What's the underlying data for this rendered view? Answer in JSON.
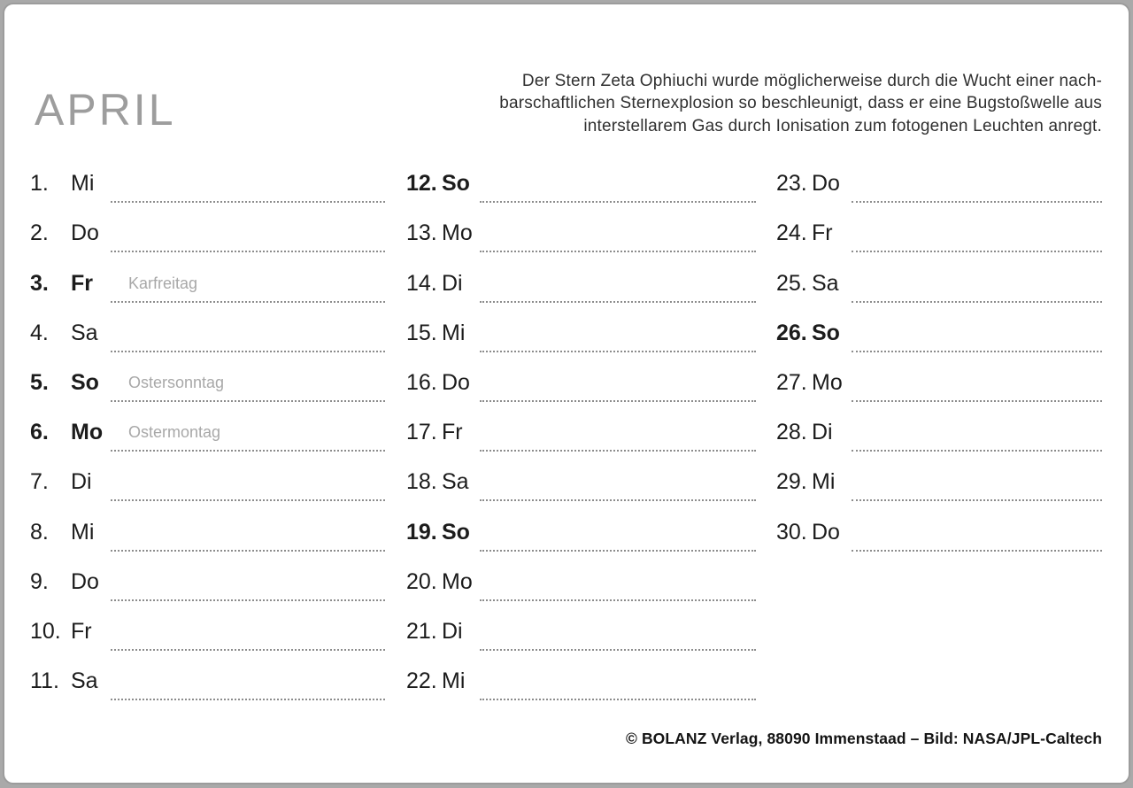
{
  "title": "APRIL",
  "intro": {
    "lines": [
      "Der Stern Zeta Ophiuchi wurde möglicherweise durch die Wucht einer nach-",
      "barschaftlichen Sternexplosion so beschleunigt, dass er eine Bugstoßwelle aus",
      "interstellarem Gas durch Ionisation zum fotogenen Leuchten anregt."
    ]
  },
  "footer": {
    "imprint": "© BOLANZ Verlag, 88090 Immenstaad – Bild: NASA/JPL-Caltech"
  },
  "colors": {
    "page_background": "#ffffff",
    "outer_background": "#a9a9a9",
    "page_border": "#9c9c9c",
    "title_gray": "#9d9d9d",
    "holiday_gray": "#a8a8a8",
    "dotted_line": "#8c8c8c",
    "day_text": "#1c1c1c"
  },
  "columns": [
    {
      "days": [
        {
          "date": "1.",
          "weekday": "Mi",
          "holiday": "",
          "bold": false
        },
        {
          "date": "2.",
          "weekday": "Do",
          "holiday": "",
          "bold": false
        },
        {
          "date": "3.",
          "weekday": "Fr",
          "holiday": "Karfreitag",
          "bold": true
        },
        {
          "date": "4.",
          "weekday": "Sa",
          "holiday": "",
          "bold": false
        },
        {
          "date": "5.",
          "weekday": "So",
          "holiday": "Ostersonntag",
          "bold": true
        },
        {
          "date": "6.",
          "weekday": "Mo",
          "holiday": "Ostermontag",
          "bold": true
        },
        {
          "date": "7.",
          "weekday": "Di",
          "holiday": "",
          "bold": false
        },
        {
          "date": "8.",
          "weekday": "Mi",
          "holiday": "",
          "bold": false
        },
        {
          "date": "9.",
          "weekday": "Do",
          "holiday": "",
          "bold": false
        },
        {
          "date": "10.",
          "weekday": "Fr",
          "holiday": "",
          "bold": false
        },
        {
          "date": "11.",
          "weekday": "Sa",
          "holiday": "",
          "bold": false
        }
      ]
    },
    {
      "days": [
        {
          "date": "12.",
          "weekday": "So",
          "holiday": "",
          "bold": true
        },
        {
          "date": "13.",
          "weekday": "Mo",
          "holiday": "",
          "bold": false
        },
        {
          "date": "14.",
          "weekday": "Di",
          "holiday": "",
          "bold": false
        },
        {
          "date": "15.",
          "weekday": "Mi",
          "holiday": "",
          "bold": false
        },
        {
          "date": "16.",
          "weekday": "Do",
          "holiday": "",
          "bold": false
        },
        {
          "date": "17.",
          "weekday": "Fr",
          "holiday": "",
          "bold": false
        },
        {
          "date": "18.",
          "weekday": "Sa",
          "holiday": "",
          "bold": false
        },
        {
          "date": "19.",
          "weekday": "So",
          "holiday": "",
          "bold": true
        },
        {
          "date": "20.",
          "weekday": "Mo",
          "holiday": "",
          "bold": false
        },
        {
          "date": "21.",
          "weekday": "Di",
          "holiday": "",
          "bold": false
        },
        {
          "date": "22.",
          "weekday": "Mi",
          "holiday": "",
          "bold": false
        }
      ]
    },
    {
      "days": [
        {
          "date": "23.",
          "weekday": "Do",
          "holiday": "",
          "bold": false
        },
        {
          "date": "24.",
          "weekday": "Fr",
          "holiday": "",
          "bold": false
        },
        {
          "date": "25.",
          "weekday": "Sa",
          "holiday": "",
          "bold": false
        },
        {
          "date": "26.",
          "weekday": "So",
          "holiday": "",
          "bold": true
        },
        {
          "date": "27.",
          "weekday": "Mo",
          "holiday": "",
          "bold": false
        },
        {
          "date": "28.",
          "weekday": "Di",
          "holiday": "",
          "bold": false
        },
        {
          "date": "29.",
          "weekday": "Mi",
          "holiday": "",
          "bold": false
        },
        {
          "date": "30.",
          "weekday": "Do",
          "holiday": "",
          "bold": false
        }
      ]
    }
  ]
}
